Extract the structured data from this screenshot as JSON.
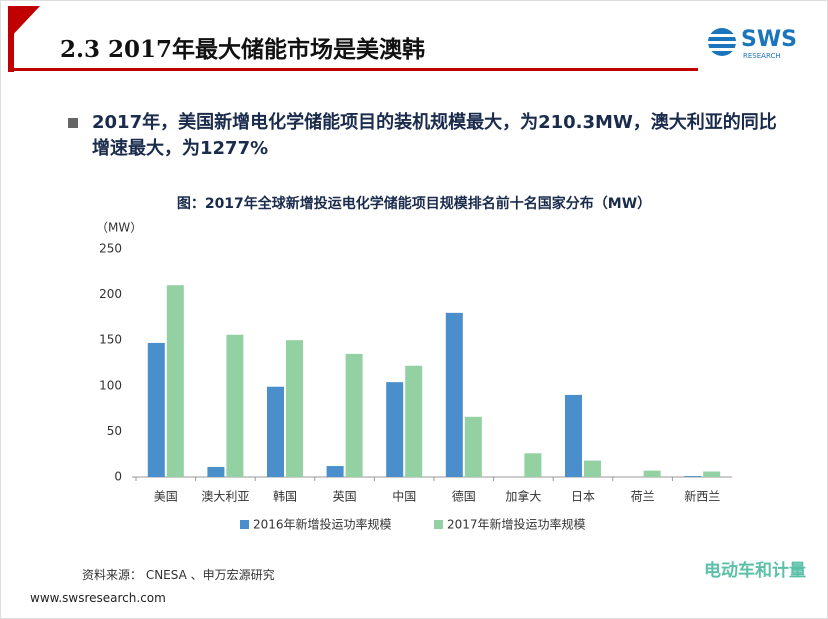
{
  "header": {
    "title": "2.3 2017年最大储能市场是美澳韩",
    "logo": "SWS",
    "logo_sub": "RESEARCH"
  },
  "bullet": "2017年，美国新增电化学储能项目的装机规模最大，为210.3MW，澳大利亚的同比增速最大，为1277%",
  "source": "资料来源： CNESA 、申万宏源研究",
  "footer": {
    "url": "www.swsresearch.com",
    "watermark": "电动车和计量"
  },
  "chart_data": {
    "type": "bar",
    "title": "图：2017年全球新增投运电化学储能项目规模排名前十名国家分布（MW）",
    "y_label": "（MW）",
    "categories": [
      "美国",
      "澳大利亚",
      "韩国",
      "英国",
      "中国",
      "德国",
      "加拿大",
      "日本",
      "荷兰",
      "新西兰"
    ],
    "series": [
      {
        "name": "2016年新增投运功率规模",
        "color": "#4a8fcb",
        "values": [
          147,
          11,
          99,
          12,
          104,
          180,
          0,
          90,
          0,
          1
        ]
      },
      {
        "name": "2017年新增投运功率规模",
        "color": "#93d0a2",
        "values": [
          210.3,
          156,
          150,
          135,
          122,
          66,
          26,
          18,
          7,
          6
        ]
      }
    ],
    "ylim": [
      0,
      250
    ],
    "yticks": [
      0,
      50,
      100,
      150,
      200,
      250
    ],
    "grid": false
  }
}
